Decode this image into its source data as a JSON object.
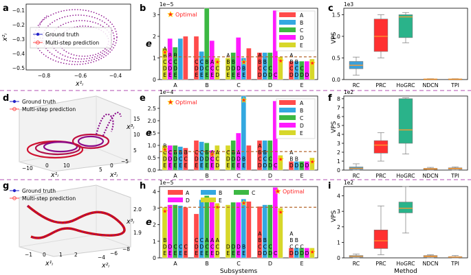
{
  "figure": {
    "separator_color": "#c070c0",
    "colors": {
      "A": "#ff4b4b",
      "B": "#33a8e0",
      "C": "#3cb843",
      "D": "#ff1aff",
      "E": "#d7d72a",
      "rule": "#b5652a",
      "star": "#ff2222",
      "star_edge": "#ffd400",
      "box_a": "#3e9fd8",
      "box_b": "#ff3030",
      "box_c": "#2ab38a",
      "box_d": "#ff9b30",
      "box_e": "#ff9b30",
      "median": "#ff9b30",
      "traj_truth": "#2323c8",
      "traj_pred": "#ff4d4d",
      "traj_pred2": "#8a0a8a"
    }
  },
  "panel_labels": [
    "a",
    "b",
    "c",
    "d",
    "e",
    "f",
    "g",
    "h",
    "i"
  ],
  "traj_rows": [
    {
      "legend": [
        "Ground truth",
        "Multi-step prediction"
      ],
      "yaxis_label": "x²ᵢ",
      "xaxis_label": "x¹ᵢ",
      "xticks": [
        "−0.8",
        "−0.6",
        "−0.4"
      ],
      "yticks": [
        "−0.1",
        "−0.2",
        "−0.3",
        "−0.4",
        "−0.5"
      ],
      "zticks": []
    },
    {
      "legend": [
        "Ground truth",
        "Multi-step prediction"
      ],
      "yaxis_label": "x²ᵢ",
      "xaxis_label": "x¹ᵢ",
      "zaxis_label": "x³ᵢ",
      "xticks": [
        "−10",
        "0",
        "10"
      ],
      "yticks": [
        "−5",
        "0",
        "5"
      ],
      "zticks": [
        "5",
        "10",
        "15"
      ]
    },
    {
      "legend": [
        "Ground truth",
        "Multi-step prediction"
      ],
      "yaxis_label": "x²ᵢ",
      "xaxis_label": "x¹ᵢ",
      "zaxis_label": "x³ᵢ",
      "xticks": [
        "−1",
        "0",
        "1",
        "2"
      ],
      "yticks": [
        "−8",
        "−6",
        "−4"
      ],
      "zticks": [
        "1.9",
        "2.0"
      ]
    }
  ],
  "chart_data": [
    {
      "panel": "b",
      "type": "bar",
      "title": "",
      "exponent": "1e−5",
      "ylabel": "e",
      "ylim": [
        0,
        3.3
      ],
      "yticks": [
        "0",
        "1",
        "2",
        "3"
      ],
      "categories": [
        "A",
        "B",
        "C",
        "D",
        "E"
      ],
      "series_legend": [
        "A",
        "B",
        "C",
        "D",
        "E"
      ],
      "optimal_label": "Optimal",
      "threshold": 1.05,
      "groups": [
        {
          "name": "A",
          "values": [
            1.45,
            1.9,
            1.5,
            1.9,
            2.0
          ],
          "letters": [
            "E",
            "D",
            "C",
            "B",
            "A"
          ],
          "stack_text": [
            [
              "A"
            ],
            [
              "B",
              "B",
              "B"
            ],
            [
              "C",
              "C",
              "C"
            ],
            [
              "D",
              "D",
              "D"
            ],
            [
              "E",
              "E",
              "E"
            ]
          ],
          "optimal_index": 0
        },
        {
          "name": "B",
          "values": [
            2.0,
            1.3,
            3.3,
            1.8,
            1.0
          ],
          "letters": [
            "A",
            "B",
            "C",
            "D",
            "E"
          ],
          "stack_text": [
            [
              "C",
              "C",
              "B",
              "A",
              "A"
            ],
            [
              "D",
              "D",
              "C",
              "C",
              "C"
            ],
            [
              "E",
              "E",
              "E",
              "E",
              "D"
            ]
          ],
          "optimal_index": 4
        },
        {
          "name": "C",
          "values": [
            1.0,
            1.25,
            1.95,
            1.0,
            1.45
          ],
          "letters": [
            "E",
            "C",
            "D",
            "B",
            "A"
          ],
          "stack_text": [
            [
              "A"
            ],
            [
              "B",
              "B"
            ],
            [
              "D",
              "D",
              "D",
              "B"
            ],
            [
              "E",
              "E",
              "E",
              "E"
            ]
          ],
          "optimal_index": 3
        },
        {
          "name": "D",
          "values": [
            1.25,
            1.25,
            1.25,
            3.2,
            1.05
          ],
          "letters": [
            "A",
            "B",
            "C",
            "D",
            "E"
          ],
          "stack_text": [
            [
              "A"
            ],
            [
              "B",
              "B"
            ],
            [
              "C",
              "C",
              "C"
            ],
            [
              "D",
              "D",
              "D",
              "C"
            ]
          ],
          "optimal_index": 4
        },
        {
          "name": "E",
          "values": [
            0.85,
            0.85,
            0.85,
            0.85,
            0.95
          ],
          "letters": [
            "A",
            "B",
            "C",
            "D",
            "E"
          ],
          "stack_text": [
            [
              "A"
            ],
            [
              "B",
              "B"
            ],
            [
              "C",
              "C",
              "C"
            ],
            [
              "D",
              "D",
              "D",
              "D"
            ]
          ],
          "optimal_index": 4
        }
      ]
    },
    {
      "panel": "c",
      "type": "box",
      "exponent": "1e3",
      "ylabel": "VPS",
      "xlabel": "",
      "ylim": [
        0,
        1.65
      ],
      "yticks": [
        "0.0",
        "0.5",
        "1.0",
        "1.5"
      ],
      "categories": [
        "RC",
        "PRC",
        "HoGRC",
        "NDCN",
        "TPI"
      ],
      "boxes": [
        {
          "whislo": 0.1,
          "q1": 0.25,
          "med": 0.33,
          "q3": 0.42,
          "whishi": 0.52
        },
        {
          "whislo": 0.5,
          "q1": 0.65,
          "med": 1.0,
          "q3": 1.4,
          "whishi": 1.5
        },
        {
          "whislo": 0.85,
          "q1": 0.97,
          "med": 1.45,
          "q3": 1.5,
          "whishi": 1.55
        },
        {
          "whislo": 0.0,
          "q1": 0.005,
          "med": 0.01,
          "q3": 0.015,
          "whishi": 0.02
        },
        {
          "whislo": 0.0,
          "q1": 0.005,
          "med": 0.01,
          "q3": 0.015,
          "whishi": 0.02
        }
      ]
    },
    {
      "panel": "e",
      "type": "bar",
      "exponent": "1e−4",
      "ylabel": "e",
      "ylim": [
        0,
        3.0
      ],
      "yticks": [
        "0.0",
        "0.5",
        "1.0",
        "1.5",
        "2.0",
        "2.5"
      ],
      "categories": [
        "A",
        "B",
        "C",
        "D",
        "E"
      ],
      "series_legend": [
        "A",
        "B",
        "C",
        "D",
        "E"
      ],
      "optimal_label": "Optimal",
      "threshold": 0.75,
      "groups": [
        {
          "name": "A",
          "values": [
            1.0,
            1.0,
            1.0,
            0.95,
            0.9
          ],
          "letters": [
            "E",
            "D",
            "C",
            "B",
            "A"
          ],
          "stack_text": [
            [
              "B"
            ],
            [
              "C",
              "C",
              "B",
              "B",
              "B"
            ],
            [
              "D",
              "D",
              "D",
              "C",
              "C"
            ],
            [
              "E",
              "E",
              "E",
              "E",
              "E"
            ]
          ],
          "optimal_index": 0
        },
        {
          "name": "B",
          "values": [
            1.2,
            1.15,
            1.1,
            0.8,
            1.0
          ],
          "letters": [
            "A",
            "B",
            "C",
            "D",
            "E"
          ],
          "stack_text": [
            [
              "C",
              "C",
              "B",
              "A",
              "A"
            ],
            [
              "D",
              "D",
              "D",
              "C",
              "C"
            ],
            [
              "E",
              "E",
              "E",
              "E",
              "D"
            ]
          ],
          "optimal_index": 3
        },
        {
          "name": "C",
          "values": [
            1.0,
            1.2,
            1.5,
            3.0,
            1.0
          ],
          "letters": [
            "E",
            "C",
            "D",
            "B",
            "A"
          ],
          "stack_text": [
            [
              "C",
              "B",
              "A"
            ],
            [
              "D",
              "D",
              "D",
              "B"
            ],
            [
              "E",
              "E",
              "E",
              "E"
            ]
          ],
          "optimal_index": 3
        },
        {
          "name": "D",
          "values": [
            1.2,
            1.2,
            1.2,
            2.8,
            0.6
          ],
          "letters": [
            "A",
            "B",
            "C",
            "D",
            "E"
          ],
          "stack_text": [
            [
              "A"
            ],
            [
              "B",
              "B"
            ],
            [
              "C",
              "C",
              "C"
            ],
            [
              "D",
              "D",
              "D",
              "C"
            ]
          ],
          "optimal_index": 4
        },
        {
          "name": "E",
          "values": [
            0.35,
            0.35,
            0.35,
            0.35,
            0.5
          ],
          "letters": [
            "A",
            "B",
            "C",
            "D",
            "E"
          ],
          "stack_text": [
            [
              "A"
            ],
            [
              "B",
              "B"
            ],
            [
              "D",
              "D",
              "D",
              "D"
            ]
          ],
          "optimal_index": 4
        }
      ]
    },
    {
      "panel": "f",
      "type": "box",
      "exponent": "1e2",
      "ylabel": "VPS",
      "xlabel": "",
      "ylim": [
        0,
        8.3
      ],
      "yticks": [
        "0",
        "1",
        "2",
        "3",
        "4",
        "5",
        "6",
        "7",
        "8"
      ],
      "categories": [
        "RC",
        "PRC",
        "HoGRC",
        "NDCN",
        "TPI"
      ],
      "boxes": [
        {
          "whislo": 0.0,
          "q1": 0.1,
          "med": 0.2,
          "q3": 0.35,
          "whishi": 0.7
        },
        {
          "whislo": 1.0,
          "q1": 1.9,
          "med": 2.8,
          "q3": 3.3,
          "whishi": 4.2
        },
        {
          "whislo": 1.8,
          "q1": 3.0,
          "med": 4.5,
          "q3": 8.0,
          "whishi": 8.1
        },
        {
          "whislo": 0.0,
          "q1": 0.05,
          "med": 0.12,
          "q3": 0.2,
          "whishi": 0.3
        },
        {
          "whislo": 0.0,
          "q1": 0.1,
          "med": 0.18,
          "q3": 0.25,
          "whishi": 0.35
        }
      ]
    },
    {
      "panel": "h",
      "type": "bar",
      "exponent": "1e−5",
      "ylabel": "e",
      "xlabel": "Subsystems",
      "ylim": [
        0,
        4.3
      ],
      "yticks": [
        "0",
        "1",
        "2",
        "3",
        "4"
      ],
      "categories": [
        "A",
        "B",
        "C",
        "D",
        "E"
      ],
      "series_legend": [
        "A",
        "B",
        "C",
        "D",
        "E"
      ],
      "optimal_label": "Optimal",
      "threshold": 3.05,
      "groups": [
        {
          "name": "A",
          "values": [
            3.05,
            3.2,
            3.2,
            3.15,
            3.05
          ],
          "letters": [
            "E",
            "D",
            "C",
            "B",
            "A"
          ],
          "stack_text": [
            [
              "B"
            ],
            [
              "D",
              "D",
              "C",
              "C",
              "C"
            ],
            [
              "E",
              "E",
              "E",
              "E",
              "E"
            ]
          ],
          "optimal_index": 0
        },
        {
          "name": "B",
          "values": [
            2.65,
            3.5,
            3.75,
            3.55,
            3.3
          ],
          "letters": [
            "A",
            "B",
            "C",
            "D",
            "E"
          ],
          "stack_text": [
            [
              "C",
              "C",
              "A",
              "A",
              "A"
            ],
            [
              "D",
              "D",
              "C",
              "C",
              "C"
            ],
            [
              "E",
              "E",
              "E",
              "E",
              "D"
            ]
          ],
          "optimal_index": 4
        },
        {
          "name": "C",
          "values": [
            3.2,
            3.35,
            3.35,
            3.55,
            3.4
          ],
          "letters": [
            "E",
            "C",
            "D",
            "B",
            "A"
          ],
          "stack_text": [
            [
              "D",
              "D",
              "D",
              "B"
            ],
            [
              "E",
              "E",
              "E",
              "E"
            ]
          ],
          "optimal_index": 3
        },
        {
          "name": "D",
          "values": [
            3.1,
            3.2,
            3.2,
            4.25,
            3.0
          ],
          "letters": [
            "A",
            "B",
            "C",
            "D",
            "E"
          ],
          "stack_text": [
            [
              "A"
            ],
            [
              "B",
              "B"
            ],
            [
              "C",
              "C",
              "C"
            ],
            [
              "D",
              "D",
              "D",
              "C"
            ]
          ],
          "optimal_index": 4
        },
        {
          "name": "E",
          "values": [
            0.6,
            0.6,
            0.6,
            0.6,
            0.6
          ],
          "letters": [
            "A",
            "B",
            "C",
            "D",
            "E"
          ],
          "stack_text": [
            [
              "A"
            ],
            [
              "B",
              "B"
            ],
            [
              "C",
              "C",
              "C"
            ],
            [
              "D",
              "D",
              "D",
              "D"
            ]
          ],
          "optimal_index": 4
        }
      ]
    },
    {
      "panel": "i",
      "type": "box",
      "exponent": "1e2",
      "ylabel": "VPS",
      "xlabel": "Method",
      "ylim": [
        0,
        4.6
      ],
      "yticks": [
        "0",
        "1",
        "2",
        "3",
        "4"
      ],
      "categories": [
        "RC",
        "PRC",
        "HoGRC",
        "NDCN",
        "TPI"
      ],
      "boxes": [
        {
          "whislo": 0.0,
          "q1": 0.05,
          "med": 0.1,
          "q3": 0.15,
          "whishi": 0.25
        },
        {
          "whislo": 0.2,
          "q1": 0.6,
          "med": 1.1,
          "q3": 1.8,
          "whishi": 3.35
        },
        {
          "whislo": 1.6,
          "q1": 2.9,
          "med": 3.2,
          "q3": 3.6,
          "whishi": 4.6
        },
        {
          "whislo": 0.0,
          "q1": 0.05,
          "med": 0.1,
          "q3": 0.15,
          "whishi": 0.2
        },
        {
          "whislo": 0.0,
          "q1": 0.02,
          "med": 0.05,
          "q3": 0.08,
          "whishi": 0.15
        }
      ]
    }
  ]
}
